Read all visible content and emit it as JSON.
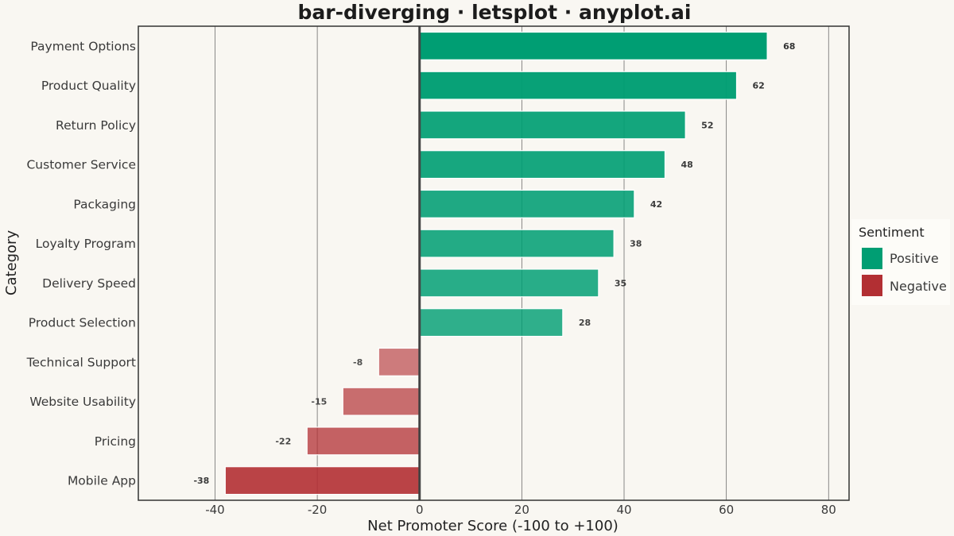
{
  "chart_data": {
    "type": "bar",
    "orientation": "horizontal",
    "title": "bar-diverging · letsplot · anyplot.ai",
    "xlabel": "Net Promoter Score (-100 to +100)",
    "ylabel": "Category",
    "xlim": [
      -55,
      84
    ],
    "xticks": [
      -40,
      -20,
      0,
      20,
      40,
      60,
      80
    ],
    "xtick_labels": [
      "-40",
      "-20",
      "0",
      "20",
      "40",
      "60",
      "80"
    ],
    "grid": true,
    "categories": [
      "Payment Options",
      "Product Quality",
      "Return Policy",
      "Customer Service",
      "Packaging",
      "Loyalty Program",
      "Delivery Speed",
      "Product Selection",
      "Technical Support",
      "Website Usability",
      "Pricing",
      "Mobile App"
    ],
    "values": [
      68,
      62,
      52,
      48,
      42,
      38,
      35,
      28,
      -8,
      -15,
      -22,
      -38
    ],
    "data_labels": [
      "68",
      "62",
      "52",
      "48",
      "42",
      "38",
      "35",
      "28",
      "-8",
      "-15",
      "-22",
      "-38"
    ],
    "legend": {
      "title": "Sentiment",
      "position": "right",
      "entries": [
        {
          "label": "Positive",
          "color": "#009e73"
        },
        {
          "label": "Negative",
          "color": "#b22f33"
        }
      ]
    }
  }
}
